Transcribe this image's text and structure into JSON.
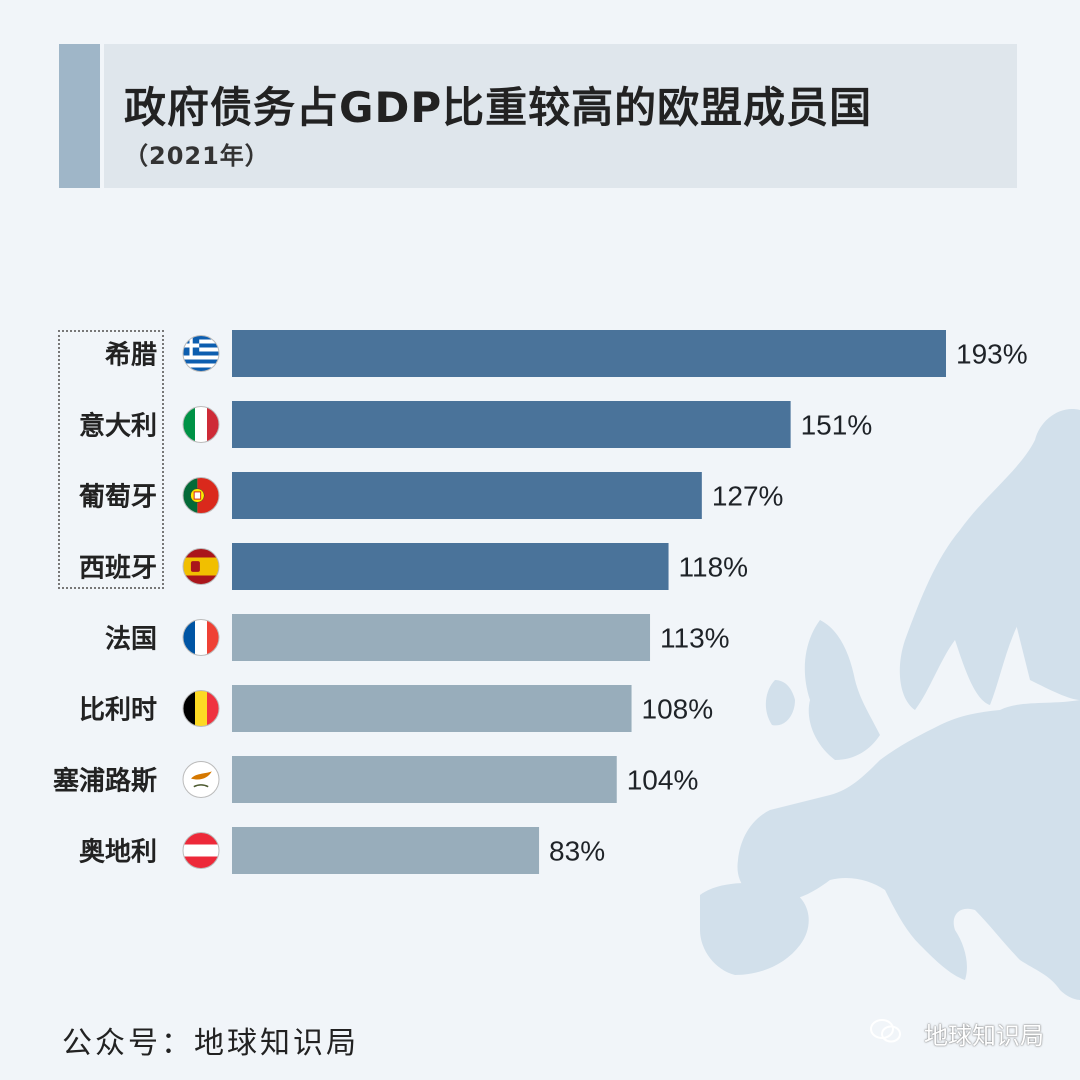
{
  "title": "政府债务占GDP比重较高的欧盟成员国",
  "subtitle": "（2021年）",
  "footer": "公众号：地球知识局",
  "watermark": "地球知识局",
  "colors": {
    "highlight_bar": "#4a739a",
    "normal_bar": "#98adbb",
    "background": "#f1f5f9",
    "map": "#d2e0eb"
  },
  "chart_data": {
    "type": "bar",
    "orientation": "horizontal",
    "title": "政府债务占GDP比重较高的欧盟成员国",
    "subtitle": "（2021年）",
    "categories": [
      "希腊",
      "意大利",
      "葡萄牙",
      "西班牙",
      "法国",
      "比利时",
      "塞浦路斯",
      "奥地利"
    ],
    "values": [
      193,
      151,
      127,
      118,
      113,
      108,
      104,
      83
    ],
    "value_labels": [
      "193%",
      "151%",
      "127%",
      "118%",
      "113%",
      "108%",
      "104%",
      "83%"
    ],
    "highlighted": [
      true,
      true,
      true,
      true,
      false,
      false,
      false,
      false
    ],
    "flags": [
      "greece-flag",
      "italy-flag",
      "portugal-flag",
      "spain-flag",
      "france-flag",
      "belgium-flag",
      "cyprus-flag",
      "austria-flag"
    ],
    "xlim": [
      0,
      193
    ],
    "grid": false,
    "legend": "none"
  }
}
